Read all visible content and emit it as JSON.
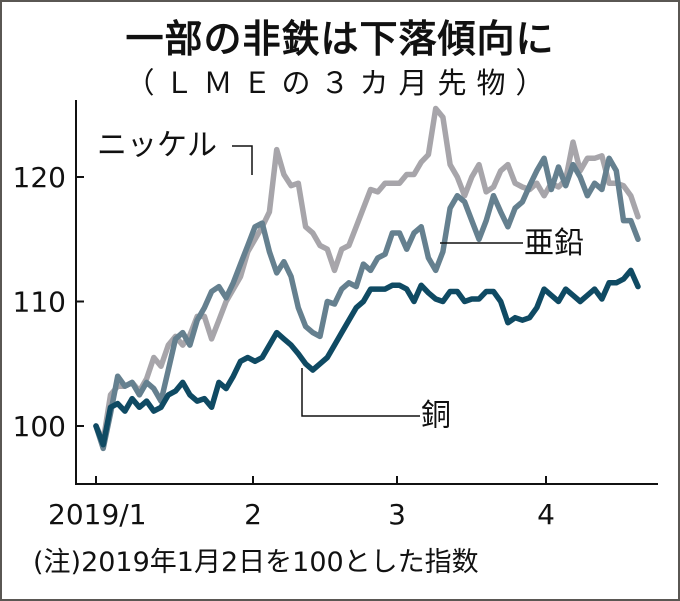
{
  "title": "一部の非鉄は下落傾向に",
  "subtitle": "（ＬＭＥの３カ月先物）",
  "note": "(注)2019年1月2日を100とした指数",
  "colors": {
    "nickel": "#a7a5aa",
    "zinc": "#65808f",
    "copper": "#0f4a63",
    "axis": "#111111",
    "frame": "#5a5753"
  },
  "chart_data": {
    "type": "line",
    "title": "一部の非鉄は下落傾向に",
    "subtitle": "（ＬＭＥの３カ月先物）",
    "xlabel": "",
    "ylabel": "",
    "ylim": [
      96,
      126
    ],
    "xlim": [
      0,
      76
    ],
    "yticks": [
      100,
      110,
      120
    ],
    "ytick_labels": [
      "100",
      "110",
      "120"
    ],
    "xticks": [
      0,
      22,
      42,
      63
    ],
    "xtick_labels": [
      "2019/1",
      "2",
      "3",
      "4"
    ],
    "grid": false,
    "legend": "inline labels",
    "annotations": [
      "ニッケル",
      "亜鉛",
      "銅"
    ],
    "series": [
      {
        "name": "ニッケル",
        "values": [
          100,
          98.8,
          102.5,
          103.2,
          103.2,
          103.5,
          102.8,
          103.8,
          105.5,
          104.8,
          106.5,
          107.2,
          106.5,
          107.3,
          108.8,
          108.8,
          107,
          108.5,
          110,
          111,
          112,
          114,
          115,
          116,
          117.2,
          122.2,
          120.2,
          119.3,
          119.5,
          116,
          115.5,
          114.5,
          114.2,
          112.5,
          114.2,
          114.5,
          116,
          117.5,
          119,
          118.8,
          119.5,
          119.5,
          119.5,
          120.2,
          120.2,
          121.2,
          121.8,
          125.5,
          124.8,
          121,
          120,
          118.5,
          120,
          121,
          118.8,
          119.2,
          120.5,
          121,
          119.5,
          119.2,
          119,
          119.5,
          118.5,
          119.5,
          119.2,
          119.8,
          122.8,
          120.5,
          121.5,
          121.5,
          121.7,
          119.5,
          119.5,
          119.3,
          118.5,
          116.8
        ]
      },
      {
        "name": "亜鉛",
        "values": [
          100,
          98.2,
          101,
          104,
          103.2,
          103.5,
          102.5,
          103.5,
          103,
          102,
          104.5,
          107,
          107.5,
          106.5,
          108.5,
          109.5,
          110.8,
          111.2,
          110.3,
          111.5,
          113,
          114.5,
          116,
          116.3,
          114,
          112.3,
          113.2,
          112,
          109.5,
          108,
          107.5,
          107.2,
          110,
          109.8,
          111,
          111.5,
          111.2,
          113,
          112.5,
          113.5,
          113.8,
          115.5,
          115.5,
          114.2,
          115.5,
          116,
          113.5,
          112.5,
          114,
          117.5,
          118.5,
          118,
          116.5,
          115,
          116.5,
          118.5,
          117.2,
          116,
          117.5,
          118,
          119.3,
          120.5,
          121.5,
          119,
          120.8,
          119.3,
          121,
          120,
          118.5,
          119.5,
          119,
          121.5,
          120.5,
          116.5,
          116.5,
          115
        ]
      },
      {
        "name": "銅",
        "values": [
          100,
          98.5,
          101.5,
          101.8,
          101.2,
          102.2,
          101.5,
          102,
          101.2,
          101.5,
          102.5,
          102.8,
          103.5,
          102.5,
          102,
          102.2,
          101.5,
          103.5,
          103,
          104,
          105.2,
          105.5,
          105.2,
          105.5,
          106.5,
          107.5,
          107,
          106.5,
          105.8,
          105,
          104.5,
          105,
          105.5,
          106.5,
          107.5,
          108.5,
          109.5,
          110,
          111,
          111,
          111,
          111.3,
          111.3,
          111,
          110,
          111.3,
          110.7,
          110.2,
          110,
          110.8,
          110.8,
          110,
          110.2,
          110.2,
          110.8,
          110.8,
          110,
          108.3,
          108.7,
          108.5,
          108.7,
          109.5,
          111,
          110.5,
          110,
          111,
          110.5,
          110,
          110.5,
          111,
          110.2,
          111.5,
          111.5,
          111.8,
          112.5,
          111.2
        ]
      }
    ]
  }
}
